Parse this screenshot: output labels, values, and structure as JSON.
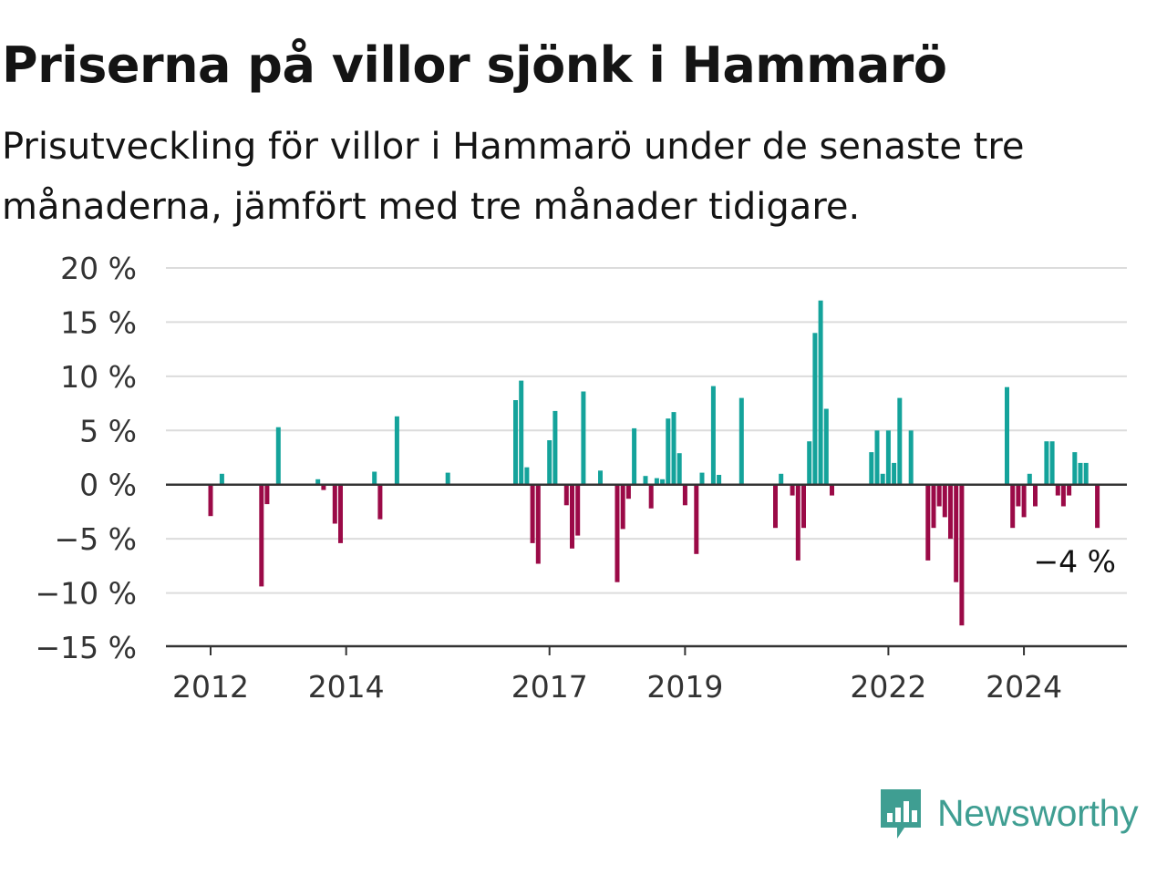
{
  "header": {
    "title": "Priserna på villor sjönk i Hammarö",
    "subtitle": "Prisutveckling för villor i Hammarö under de senaste tre månaderna, jämfört med tre månader tidigare."
  },
  "brand": {
    "name": "Newsworthy",
    "icon": "newsworthy-logo-icon"
  },
  "colors": {
    "positive": "#14a39b",
    "negative": "#9b0a47",
    "grid": "#dcdcdc",
    "axis": "#333333"
  },
  "chart_data": {
    "type": "bar",
    "x_unit": "month",
    "ylim": [
      -15,
      20
    ],
    "y_ticks": [
      {
        "value": 20,
        "label": "20 %"
      },
      {
        "value": 15,
        "label": "15 %"
      },
      {
        "value": 10,
        "label": "10 %"
      },
      {
        "value": 5,
        "label": "5 %"
      },
      {
        "value": 0,
        "label": "0 %"
      },
      {
        "value": -5,
        "label": "−5 %"
      },
      {
        "value": -10,
        "label": "−10 %"
      },
      {
        "value": -15,
        "label": "−15 %"
      }
    ],
    "x_ticks": [
      {
        "label": "2012",
        "date": "2012-01"
      },
      {
        "label": "2014",
        "date": "2014-01"
      },
      {
        "label": "2017",
        "date": "2017-01"
      },
      {
        "label": "2019",
        "date": "2019-01"
      },
      {
        "label": "2022",
        "date": "2022-01"
      },
      {
        "label": "2024",
        "date": "2024-01"
      }
    ],
    "grid": true,
    "last_value_label": "−4 %",
    "points": [
      {
        "date": "2012-01",
        "value": -2.9
      },
      {
        "date": "2012-03",
        "value": 1.0
      },
      {
        "date": "2012-10",
        "value": -9.4
      },
      {
        "date": "2012-11",
        "value": -1.8
      },
      {
        "date": "2013-01",
        "value": 5.3
      },
      {
        "date": "2013-08",
        "value": 0.5
      },
      {
        "date": "2013-09",
        "value": -0.5
      },
      {
        "date": "2013-11",
        "value": -3.6
      },
      {
        "date": "2013-12",
        "value": -5.4
      },
      {
        "date": "2014-06",
        "value": 1.2
      },
      {
        "date": "2014-07",
        "value": -3.2
      },
      {
        "date": "2014-10",
        "value": 6.3
      },
      {
        "date": "2015-07",
        "value": 1.1
      },
      {
        "date": "2016-07",
        "value": 7.8
      },
      {
        "date": "2016-08",
        "value": 9.6
      },
      {
        "date": "2016-09",
        "value": 1.6
      },
      {
        "date": "2016-10",
        "value": -5.4
      },
      {
        "date": "2016-11",
        "value": -7.3
      },
      {
        "date": "2017-01",
        "value": 4.1
      },
      {
        "date": "2017-02",
        "value": 6.8
      },
      {
        "date": "2017-04",
        "value": -1.9
      },
      {
        "date": "2017-05",
        "value": -5.9
      },
      {
        "date": "2017-06",
        "value": -4.7
      },
      {
        "date": "2017-07",
        "value": 8.6
      },
      {
        "date": "2017-10",
        "value": 1.3
      },
      {
        "date": "2018-01",
        "value": -9.0
      },
      {
        "date": "2018-02",
        "value": -4.1
      },
      {
        "date": "2018-03",
        "value": -1.3
      },
      {
        "date": "2018-04",
        "value": 5.2
      },
      {
        "date": "2018-06",
        "value": 0.8
      },
      {
        "date": "2018-07",
        "value": -2.2
      },
      {
        "date": "2018-08",
        "value": 0.6
      },
      {
        "date": "2018-09",
        "value": 0.5
      },
      {
        "date": "2018-10",
        "value": 6.1
      },
      {
        "date": "2018-11",
        "value": 6.7
      },
      {
        "date": "2018-12",
        "value": 2.9
      },
      {
        "date": "2019-01",
        "value": -1.9
      },
      {
        "date": "2019-03",
        "value": -6.4
      },
      {
        "date": "2019-04",
        "value": 1.1
      },
      {
        "date": "2019-06",
        "value": 9.1
      },
      {
        "date": "2019-07",
        "value": 0.9
      },
      {
        "date": "2019-11",
        "value": 8.0
      },
      {
        "date": "2020-05",
        "value": -4.0
      },
      {
        "date": "2020-06",
        "value": 1.0
      },
      {
        "date": "2020-08",
        "value": -1.0
      },
      {
        "date": "2020-09",
        "value": -7.0
      },
      {
        "date": "2020-10",
        "value": -4.0
      },
      {
        "date": "2020-11",
        "value": 4.0
      },
      {
        "date": "2020-12",
        "value": 14.0
      },
      {
        "date": "2021-01",
        "value": 17.0
      },
      {
        "date": "2021-02",
        "value": 7.0
      },
      {
        "date": "2021-03",
        "value": -1.0
      },
      {
        "date": "2021-10",
        "value": 3.0
      },
      {
        "date": "2021-11",
        "value": 5.0
      },
      {
        "date": "2021-12",
        "value": 1.0
      },
      {
        "date": "2022-01",
        "value": 5.0
      },
      {
        "date": "2022-02",
        "value": 2.0
      },
      {
        "date": "2022-03",
        "value": 8.0
      },
      {
        "date": "2022-05",
        "value": 5.0
      },
      {
        "date": "2022-08",
        "value": -7.0
      },
      {
        "date": "2022-09",
        "value": -4.0
      },
      {
        "date": "2022-10",
        "value": -2.0
      },
      {
        "date": "2022-11",
        "value": -3.0
      },
      {
        "date": "2022-12",
        "value": -5.0
      },
      {
        "date": "2023-01",
        "value": -9.0
      },
      {
        "date": "2023-02",
        "value": -13.0
      },
      {
        "date": "2023-10",
        "value": 9.0
      },
      {
        "date": "2023-11",
        "value": -4.0
      },
      {
        "date": "2023-12",
        "value": -2.0
      },
      {
        "date": "2024-01",
        "value": -3.0
      },
      {
        "date": "2024-02",
        "value": 1.0
      },
      {
        "date": "2024-03",
        "value": -2.0
      },
      {
        "date": "2024-05",
        "value": 4.0
      },
      {
        "date": "2024-06",
        "value": 4.0
      },
      {
        "date": "2024-07",
        "value": -1.0
      },
      {
        "date": "2024-08",
        "value": -2.0
      },
      {
        "date": "2024-09",
        "value": -1.0
      },
      {
        "date": "2024-10",
        "value": 3.0
      },
      {
        "date": "2024-11",
        "value": 2.0
      },
      {
        "date": "2024-12",
        "value": 2.0
      },
      {
        "date": "2025-02",
        "value": -4.0
      }
    ]
  }
}
